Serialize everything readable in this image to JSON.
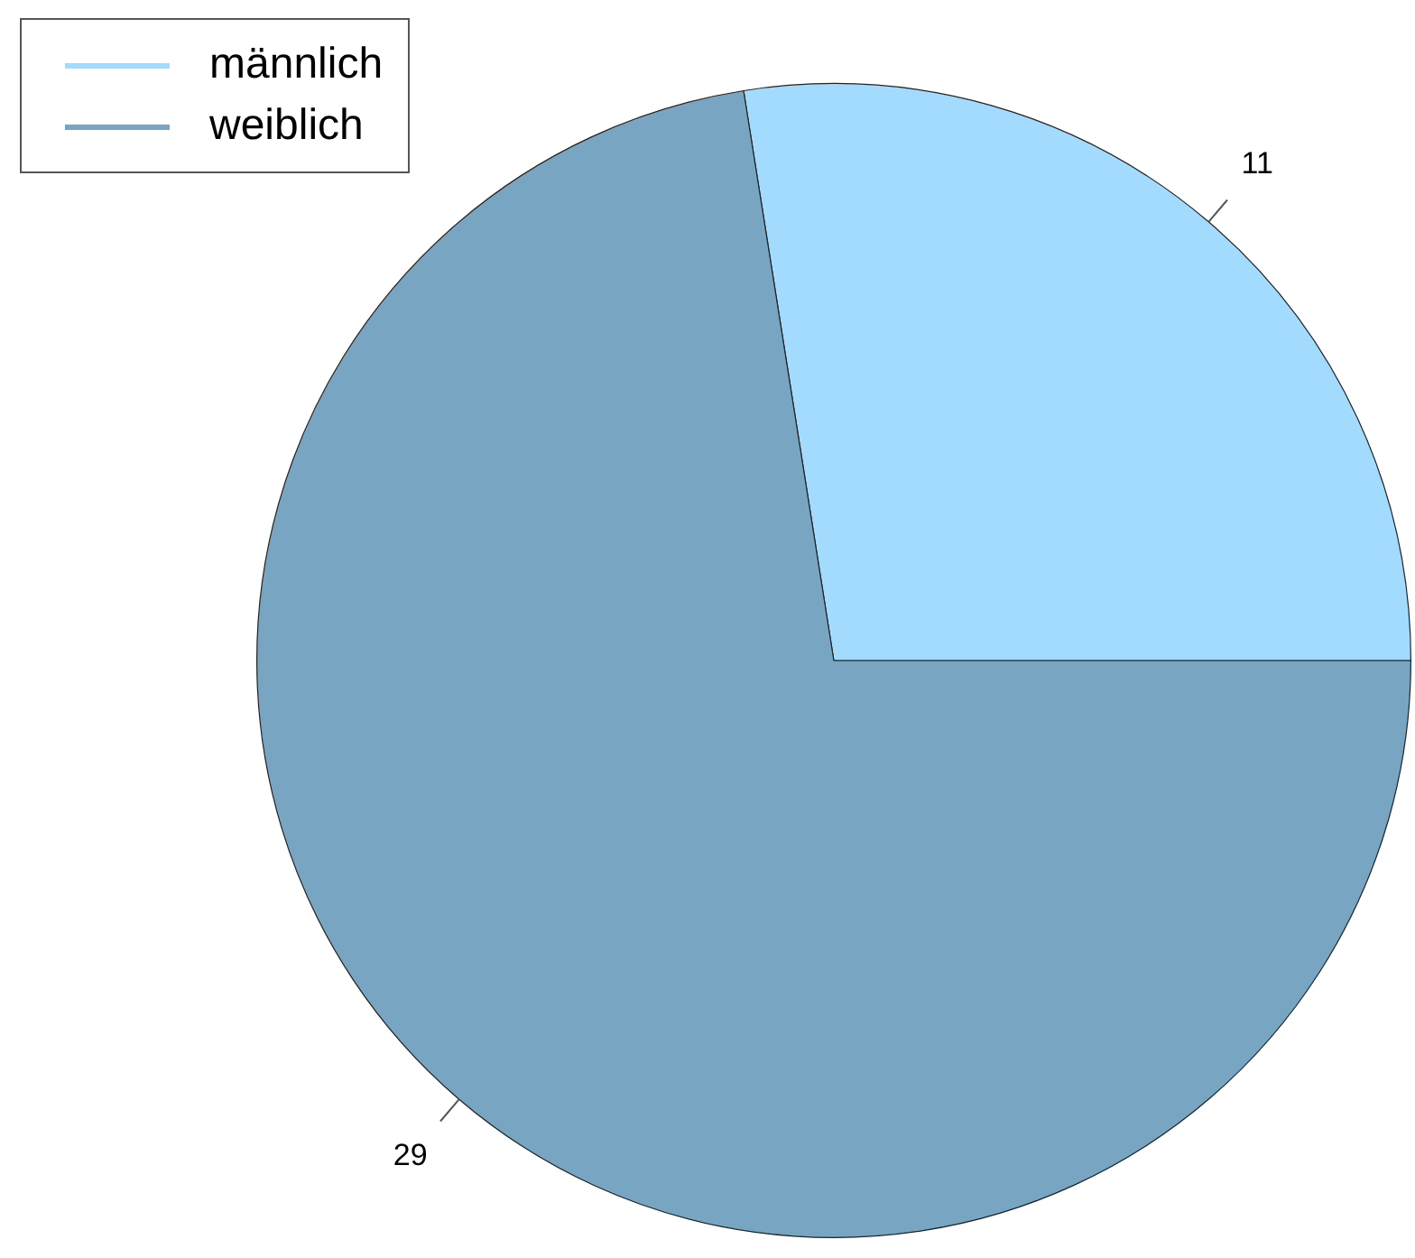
{
  "chart_data": {
    "type": "pie",
    "categories": [
      "männlich",
      "weiblich"
    ],
    "values": [
      11,
      29
    ],
    "colors": [
      "#a3dbff",
      "#78a5c2"
    ],
    "data_labels": true,
    "legend": "top left"
  }
}
